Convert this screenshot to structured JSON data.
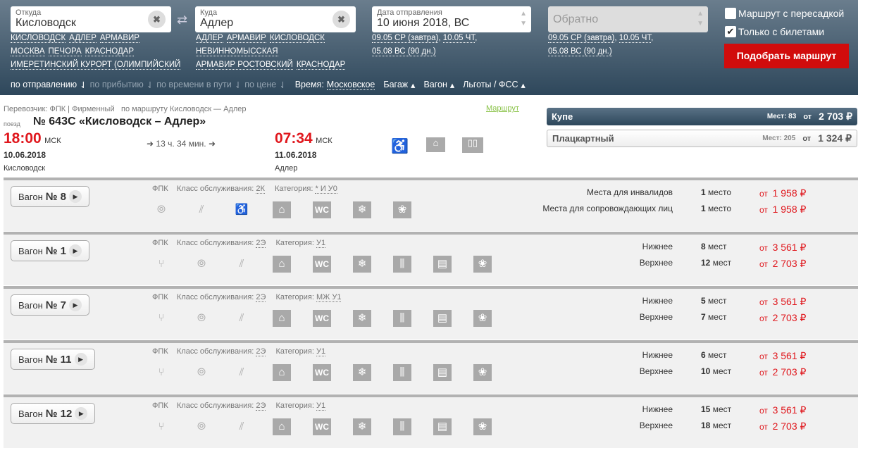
{
  "search": {
    "from": {
      "label": "Откуда",
      "value": "Кисловодск",
      "quick": [
        "КИСЛОВОДСК",
        "АДЛЕР",
        "АРМАВИР",
        "МОСКВА",
        "ПЕЧОРА",
        "КРАСНОДАР",
        "ИМЕРЕТИНСКИЙ КУРОРТ (ОЛИМПИЙСКИЙ"
      ]
    },
    "to": {
      "label": "Куда",
      "value": "Адлер",
      "quick": [
        "АДЛЕР",
        "АРМАВИР",
        "КИСЛОВОДСК",
        "НЕВИННОМЫССКАЯ",
        "АРМАВИР РОСТОВСКИЙ",
        "КРАСНОДАР"
      ]
    },
    "date": {
      "label": "Дата отправления",
      "value": "10 июня 2018, ВС",
      "quick": [
        "09.05 СР (завтра)",
        ", ",
        "10.05 ЧТ",
        ",",
        "05.08 ВС (90 дн.)"
      ]
    },
    "return": {
      "placeholder": "Обратно",
      "quick": [
        "09.05 СР (завтра)",
        ", ",
        "10.05 ЧТ",
        ",",
        "05.08 ВС (90 дн.)"
      ]
    },
    "transfer": {
      "label": "Маршрут с пересадкой",
      "checked": false
    },
    "tickets_only": {
      "label": "Только с билетами",
      "checked": true
    },
    "submit": "Подобрать маршрут",
    "sort": [
      "по отправлению",
      "по прибытию",
      "по времени в пути",
      "по цене"
    ],
    "time_label": "Время:",
    "time_value": "Московское",
    "filters": [
      "Багаж",
      "Вагон",
      "Льготы / ФСС"
    ]
  },
  "train": {
    "carrier": "Перевозчик: ФПК | Фирменный",
    "route_text": "по маршруту Кисловодск — Адлер",
    "route_link": "Маршрут",
    "kind": "поезд",
    "name": "№ 643С «Кисловодск – Адлер»",
    "dep_time": "18:00",
    "dep_tz": "МСК",
    "dep_date": "10.06.2018",
    "dep_station": "Кисловодск",
    "duration": "13 ч. 34 мин.",
    "arr_time": "07:34",
    "arr_tz": "МСК",
    "arr_date": "11.06.2018",
    "arr_station": "Адлер",
    "classes": [
      {
        "name": "Купе",
        "seats": "Мест: 83",
        "from": "от",
        "price": "2 703 ₽"
      },
      {
        "name": "Плацкартный",
        "seats": "Мест: 205",
        "from": "от",
        "price": "1 324 ₽"
      }
    ]
  },
  "wagons": [
    {
      "label": "Вагон",
      "num": "№ 8",
      "carrier": "ФПК",
      "class_label": "Класс обслуживания:",
      "class": "2К",
      "cat_label": "Категория:",
      "cat": "* И У0",
      "icons": [
        "plate-icon",
        "wifi-icon",
        "wheelchair-icon",
        "bag-icon",
        "wc-icon",
        "snowflake-icon",
        "pet-icon"
      ],
      "seats": [
        {
          "type": "Места для инвалидов",
          "count": "1",
          "unit": "место",
          "from": "от",
          "price": "1 958 ₽"
        },
        {
          "type": "Места для сопровождающих лиц",
          "count": "1",
          "unit": "место",
          "from": "от",
          "price": "1 958 ₽"
        }
      ]
    },
    {
      "label": "Вагон",
      "num": "№ 1",
      "carrier": "ФПК",
      "class_label": "Класс обслуживания:",
      "class": "2Э",
      "cat_label": "Категория:",
      "cat": "У1",
      "icons": [
        "food-icon",
        "plate-icon",
        "wifi-icon",
        "bag-icon",
        "wc-icon",
        "snowflake-icon",
        "hygiene-icon",
        "press-icon",
        "pet-icon"
      ],
      "seats": [
        {
          "type": "Нижнее",
          "count": "8",
          "unit": "мест",
          "from": "от",
          "price": "3 561 ₽"
        },
        {
          "type": "Верхнее",
          "count": "12",
          "unit": "мест",
          "from": "от",
          "price": "2 703 ₽"
        }
      ]
    },
    {
      "label": "Вагон",
      "num": "№ 7",
      "carrier": "ФПК",
      "class_label": "Класс обслуживания:",
      "class": "2Э",
      "cat_label": "Категория:",
      "cat": "МЖ У1",
      "icons": [
        "food-icon",
        "plate-icon",
        "wifi-icon",
        "bag-icon",
        "wc-icon",
        "snowflake-icon",
        "hygiene-icon",
        "press-icon",
        "pet-icon"
      ],
      "seats": [
        {
          "type": "Нижнее",
          "count": "5",
          "unit": "мест",
          "from": "от",
          "price": "3 561 ₽"
        },
        {
          "type": "Верхнее",
          "count": "7",
          "unit": "мест",
          "from": "от",
          "price": "2 703 ₽"
        }
      ]
    },
    {
      "label": "Вагон",
      "num": "№ 11",
      "carrier": "ФПК",
      "class_label": "Класс обслуживания:",
      "class": "2Э",
      "cat_label": "Категория:",
      "cat": "У1",
      "icons": [
        "food-icon",
        "plate-icon",
        "wifi-icon",
        "bag-icon",
        "wc-icon",
        "snowflake-icon",
        "hygiene-icon",
        "press-icon",
        "pet-icon"
      ],
      "seats": [
        {
          "type": "Нижнее",
          "count": "6",
          "unit": "мест",
          "from": "от",
          "price": "3 561 ₽"
        },
        {
          "type": "Верхнее",
          "count": "10",
          "unit": "мест",
          "from": "от",
          "price": "2 703 ₽"
        }
      ]
    },
    {
      "label": "Вагон",
      "num": "№ 12",
      "carrier": "ФПК",
      "class_label": "Класс обслуживания:",
      "class": "2Э",
      "cat_label": "Категория:",
      "cat": "У1",
      "icons": [
        "food-icon",
        "plate-icon",
        "wifi-icon",
        "bag-icon",
        "wc-icon",
        "snowflake-icon",
        "hygiene-icon",
        "press-icon",
        "pet-icon"
      ],
      "seats": [
        {
          "type": "Нижнее",
          "count": "15",
          "unit": "мест",
          "from": "от",
          "price": "3 561 ₽"
        },
        {
          "type": "Верхнее",
          "count": "18",
          "unit": "мест",
          "from": "от",
          "price": "2 703 ₽"
        }
      ]
    }
  ]
}
